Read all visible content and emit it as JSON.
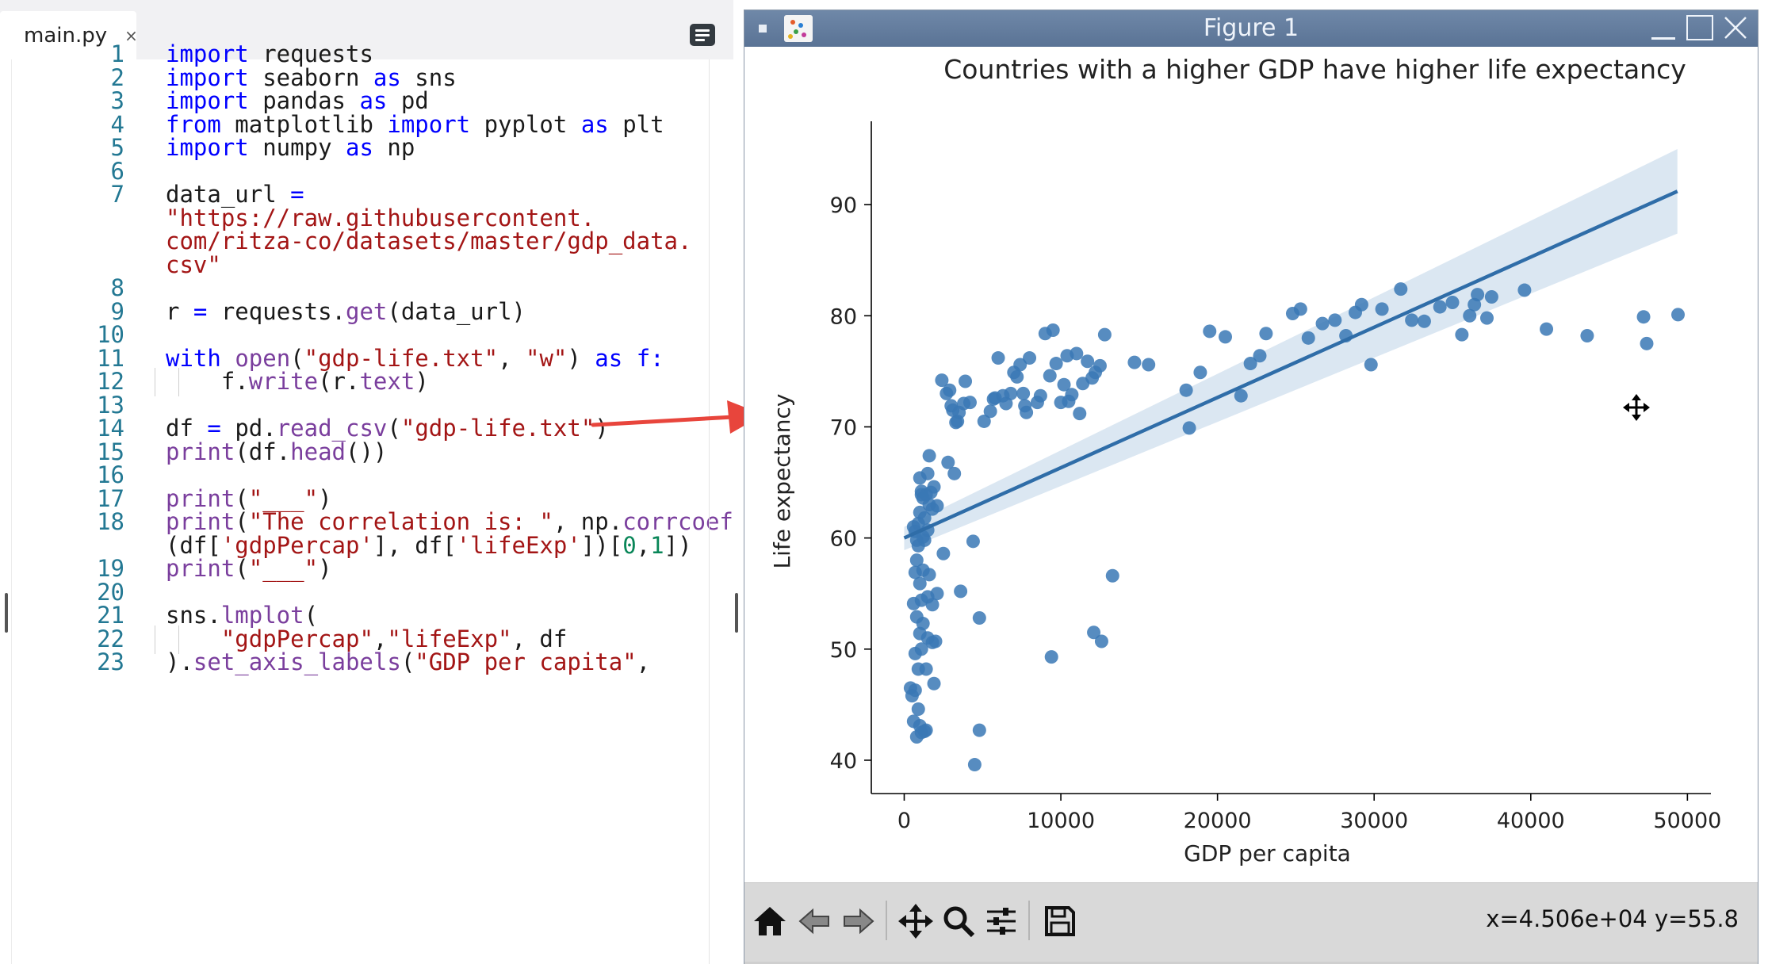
{
  "editor": {
    "tab_label": "main.py",
    "tab_close": "×",
    "lines": [
      {
        "n": "1",
        "y": 0,
        "tokens": [
          [
            "kw",
            "import"
          ],
          [
            "op",
            " requests"
          ]
        ]
      },
      {
        "n": "2",
        "y": 1,
        "tokens": [
          [
            "kw",
            "import"
          ],
          [
            "op",
            " seaborn "
          ],
          [
            "kw",
            "as"
          ],
          [
            "op",
            " sns"
          ]
        ]
      },
      {
        "n": "3",
        "y": 2,
        "tokens": [
          [
            "kw",
            "import"
          ],
          [
            "op",
            " pandas "
          ],
          [
            "kw",
            "as"
          ],
          [
            "op",
            " pd"
          ]
        ]
      },
      {
        "n": "4",
        "y": 3,
        "tokens": [
          [
            "kw",
            "from"
          ],
          [
            "op",
            " matplotlib "
          ],
          [
            "kw",
            "import"
          ],
          [
            "op",
            " pyplot "
          ],
          [
            "kw",
            "as"
          ],
          [
            "op",
            " plt"
          ]
        ]
      },
      {
        "n": "5",
        "y": 4,
        "tokens": [
          [
            "kw",
            "import"
          ],
          [
            "op",
            " numpy "
          ],
          [
            "kw",
            "as"
          ],
          [
            "op",
            " np"
          ]
        ]
      },
      {
        "n": "6",
        "y": 5,
        "tokens": []
      },
      {
        "n": "7",
        "y": 6,
        "tokens": [
          [
            "op",
            "data_url "
          ],
          [
            "kw",
            "="
          ]
        ]
      },
      {
        "n": "",
        "y": 7,
        "tokens": [
          [
            "str",
            "\"https://raw.githubusercontent."
          ]
        ]
      },
      {
        "n": "",
        "y": 8,
        "tokens": [
          [
            "str",
            "com/ritza-co/datasets/master/gdp_data."
          ]
        ]
      },
      {
        "n": "",
        "y": 9,
        "tokens": [
          [
            "str",
            "csv\""
          ]
        ]
      },
      {
        "n": "8",
        "y": 10,
        "tokens": []
      },
      {
        "n": "9",
        "y": 11,
        "tokens": [
          [
            "op",
            "r "
          ],
          [
            "kw",
            "="
          ],
          [
            "op",
            " requests."
          ],
          [
            "meth",
            "get"
          ],
          [
            "op",
            "(data_url)"
          ]
        ]
      },
      {
        "n": "10",
        "y": 12,
        "tokens": []
      },
      {
        "n": "11",
        "y": 13,
        "tokens": [
          [
            "kw",
            "with"
          ],
          [
            "op",
            " "
          ],
          [
            "meth",
            "open"
          ],
          [
            "op",
            "("
          ],
          [
            "str",
            "\"gdp-life.txt\""
          ],
          [
            "op",
            ", "
          ],
          [
            "str",
            "\"w\""
          ],
          [
            "op",
            ") "
          ],
          [
            "kw",
            "as"
          ],
          [
            "op",
            " "
          ],
          [
            "kw",
            "f:"
          ]
        ]
      },
      {
        "n": "12",
        "y": 14,
        "tokens": [
          [
            "op",
            "    f."
          ],
          [
            "meth",
            "write"
          ],
          [
            "op",
            "(r."
          ],
          [
            "meth",
            "text"
          ],
          [
            "op",
            ")"
          ]
        ]
      },
      {
        "n": "13",
        "y": 15,
        "tokens": []
      },
      {
        "n": "14",
        "y": 16,
        "tokens": [
          [
            "op",
            "df "
          ],
          [
            "kw",
            "="
          ],
          [
            "op",
            " pd."
          ],
          [
            "meth",
            "read_csv"
          ],
          [
            "op",
            "("
          ],
          [
            "str",
            "\"gdp-life.txt\""
          ],
          [
            "op",
            ")"
          ]
        ]
      },
      {
        "n": "15",
        "y": 17,
        "tokens": [
          [
            "meth",
            "print"
          ],
          [
            "op",
            "(df."
          ],
          [
            "meth",
            "head"
          ],
          [
            "op",
            "())"
          ]
        ]
      },
      {
        "n": "16",
        "y": 18,
        "tokens": []
      },
      {
        "n": "17",
        "y": 19,
        "tokens": [
          [
            "meth",
            "print"
          ],
          [
            "op",
            "("
          ],
          [
            "str",
            "\"___\""
          ],
          [
            "op",
            ")"
          ]
        ]
      },
      {
        "n": "18",
        "y": 20,
        "tokens": [
          [
            "meth",
            "print"
          ],
          [
            "op",
            "("
          ],
          [
            "str",
            "\"The correlation is: \""
          ],
          [
            "op",
            ", np."
          ],
          [
            "meth",
            "corrcoef"
          ]
        ]
      },
      {
        "n": "",
        "y": 21,
        "tokens": [
          [
            "op",
            "(df["
          ],
          [
            "str",
            "'gdpPercap'"
          ],
          [
            "op",
            "], df["
          ],
          [
            "str",
            "'lifeExp'"
          ],
          [
            "op",
            "])["
          ],
          [
            "num",
            "0"
          ],
          [
            "op",
            ","
          ],
          [
            "num",
            "1"
          ],
          [
            "op",
            "])"
          ]
        ]
      },
      {
        "n": "19",
        "y": 22,
        "tokens": [
          [
            "meth",
            "print"
          ],
          [
            "op",
            "("
          ],
          [
            "str",
            "\"___\""
          ],
          [
            "op",
            ")"
          ]
        ]
      },
      {
        "n": "20",
        "y": 23,
        "tokens": []
      },
      {
        "n": "21",
        "y": 24,
        "tokens": [
          [
            "op",
            "sns."
          ],
          [
            "meth",
            "lmplot"
          ],
          [
            "op",
            "("
          ]
        ]
      },
      {
        "n": "22",
        "y": 25,
        "tokens": [
          [
            "op",
            "    "
          ],
          [
            "str",
            "\"gdpPercap\""
          ],
          [
            "op",
            ","
          ],
          [
            "str",
            "\"lifeExp\""
          ],
          [
            "op",
            ", df"
          ]
        ]
      },
      {
        "n": "23",
        "y": 26,
        "tokens": [
          [
            "op",
            ")."
          ],
          [
            "meth",
            "set_axis_labels"
          ],
          [
            "op",
            "("
          ],
          [
            "str",
            "\"GDP per capita\""
          ],
          [
            "op",
            ","
          ]
        ]
      }
    ]
  },
  "figure": {
    "window_title": "Figure 1",
    "coord_readout": "x=4.506e+04 y=55.8",
    "toolbar_buttons": [
      "home-icon",
      "back-icon",
      "forward-icon",
      "pan-icon",
      "zoom-icon",
      "configure-subplots-icon",
      "save-icon"
    ]
  },
  "chart_data": {
    "type": "scatter",
    "title": "Countries with a higher GDP have higher life expectancy",
    "xlabel": "GDP per capita",
    "ylabel": "Life expectancy",
    "xlim": [
      -2100,
      51500
    ],
    "ylim": [
      37,
      97.5
    ],
    "xticks": [
      0,
      10000,
      20000,
      30000,
      40000,
      50000
    ],
    "yticks": [
      40,
      50,
      60,
      70,
      80,
      90
    ],
    "point_color": "#3a78b5",
    "regression": {
      "x": [
        0,
        49360
      ],
      "y": [
        60,
        91.2
      ],
      "ci_lower": [
        58.9,
        87.4
      ],
      "ci_upper": [
        61.0,
        95.0
      ]
    },
    "points": [
      [
        400,
        46.5
      ],
      [
        500,
        45.8
      ],
      [
        600,
        43.5
      ],
      [
        700,
        46.3
      ],
      [
        800,
        42.1
      ],
      [
        900,
        44.6
      ],
      [
        1000,
        43.1
      ],
      [
        1100,
        42.5
      ],
      [
        1300,
        42.6
      ],
      [
        1400,
        42.7
      ],
      [
        700,
        49.6
      ],
      [
        800,
        52.9
      ],
      [
        900,
        48.2
      ],
      [
        1000,
        51.4
      ],
      [
        1100,
        50.0
      ],
      [
        1200,
        52.3
      ],
      [
        1400,
        48.2
      ],
      [
        1500,
        51.0
      ],
      [
        1800,
        50.6
      ],
      [
        1900,
        46.9
      ],
      [
        2000,
        50.7
      ],
      [
        600,
        54.1
      ],
      [
        700,
        56.9
      ],
      [
        800,
        58.0
      ],
      [
        900,
        59.3
      ],
      [
        1000,
        55.9
      ],
      [
        1100,
        54.4
      ],
      [
        1200,
        57.1
      ],
      [
        1300,
        59.8
      ],
      [
        1500,
        54.7
      ],
      [
        1600,
        56.7
      ],
      [
        1800,
        54.0
      ],
      [
        2100,
        55.0
      ],
      [
        600,
        61.0
      ],
      [
        700,
        60.6
      ],
      [
        800,
        59.8
      ],
      [
        900,
        61.3
      ],
      [
        1000,
        62.3
      ],
      [
        1100,
        63.9
      ],
      [
        1200,
        60.1
      ],
      [
        1300,
        61.8
      ],
      [
        1400,
        63.9
      ],
      [
        1500,
        60.7
      ],
      [
        1600,
        63.0
      ],
      [
        1000,
        65.4
      ],
      [
        1100,
        64.2
      ],
      [
        1200,
        63.6
      ],
      [
        1500,
        65.8
      ],
      [
        1600,
        67.4
      ],
      [
        1700,
        64.1
      ],
      [
        1800,
        62.6
      ],
      [
        1900,
        64.6
      ],
      [
        2100,
        62.9
      ],
      [
        2500,
        58.6
      ],
      [
        2800,
        66.8
      ],
      [
        3200,
        65.8
      ],
      [
        2400,
        74.2
      ],
      [
        2700,
        73.0
      ],
      [
        2900,
        73.3
      ],
      [
        3000,
        71.9
      ],
      [
        3100,
        71.5
      ],
      [
        3300,
        70.4
      ],
      [
        3400,
        70.5
      ],
      [
        3500,
        71.3
      ],
      [
        3800,
        72.1
      ],
      [
        3900,
        74.1
      ],
      [
        4200,
        72.2
      ],
      [
        4400,
        59.7
      ],
      [
        4800,
        52.8
      ],
      [
        3600,
        55.2
      ],
      [
        4500,
        39.6
      ],
      [
        4800,
        42.7
      ],
      [
        5100,
        70.5
      ],
      [
        5500,
        71.4
      ],
      [
        5700,
        72.5
      ],
      [
        5800,
        72.6
      ],
      [
        6000,
        76.2
      ],
      [
        6300,
        72.8
      ],
      [
        6500,
        72.1
      ],
      [
        6800,
        73.0
      ],
      [
        7000,
        74.9
      ],
      [
        7200,
        74.5
      ],
      [
        7400,
        75.6
      ],
      [
        7600,
        73.0
      ],
      [
        7700,
        71.9
      ],
      [
        7800,
        71.3
      ],
      [
        8000,
        76.2
      ],
      [
        8500,
        72.2
      ],
      [
        8700,
        72.8
      ],
      [
        9000,
        78.4
      ],
      [
        9300,
        74.6
      ],
      [
        9500,
        78.7
      ],
      [
        9700,
        75.7
      ],
      [
        10000,
        72.2
      ],
      [
        10200,
        73.8
      ],
      [
        10400,
        76.4
      ],
      [
        10500,
        72.3
      ],
      [
        10700,
        72.9
      ],
      [
        11000,
        76.6
      ],
      [
        11200,
        71.2
      ],
      [
        11400,
        73.9
      ],
      [
        11700,
        75.9
      ],
      [
        12000,
        74.4
      ],
      [
        12200,
        74.9
      ],
      [
        12500,
        75.5
      ],
      [
        12800,
        78.3
      ],
      [
        9400,
        49.3
      ],
      [
        12100,
        51.5
      ],
      [
        12600,
        50.7
      ],
      [
        13300,
        56.6
      ],
      [
        14700,
        75.8
      ],
      [
        15600,
        75.6
      ],
      [
        18000,
        73.3
      ],
      [
        18200,
        69.9
      ],
      [
        18900,
        74.9
      ],
      [
        19500,
        78.6
      ],
      [
        20500,
        78.1
      ],
      [
        21500,
        72.8
      ],
      [
        22100,
        75.7
      ],
      [
        22700,
        76.4
      ],
      [
        23100,
        78.4
      ],
      [
        24800,
        80.2
      ],
      [
        25300,
        80.6
      ],
      [
        25800,
        78.0
      ],
      [
        26700,
        79.3
      ],
      [
        27500,
        79.6
      ],
      [
        28200,
        78.2
      ],
      [
        28800,
        80.3
      ],
      [
        29200,
        81.0
      ],
      [
        29800,
        75.6
      ],
      [
        30500,
        80.6
      ],
      [
        31700,
        82.4
      ],
      [
        32400,
        79.6
      ],
      [
        33200,
        79.5
      ],
      [
        34200,
        80.8
      ],
      [
        35000,
        81.2
      ],
      [
        35600,
        78.3
      ],
      [
        36100,
        80.0
      ],
      [
        36400,
        81.0
      ],
      [
        36600,
        81.9
      ],
      [
        37200,
        79.8
      ],
      [
        37500,
        81.7
      ],
      [
        39600,
        82.3
      ],
      [
        41000,
        78.8
      ],
      [
        43600,
        78.2
      ],
      [
        47200,
        79.9
      ],
      [
        47400,
        77.5
      ],
      [
        49400,
        80.1
      ]
    ]
  }
}
